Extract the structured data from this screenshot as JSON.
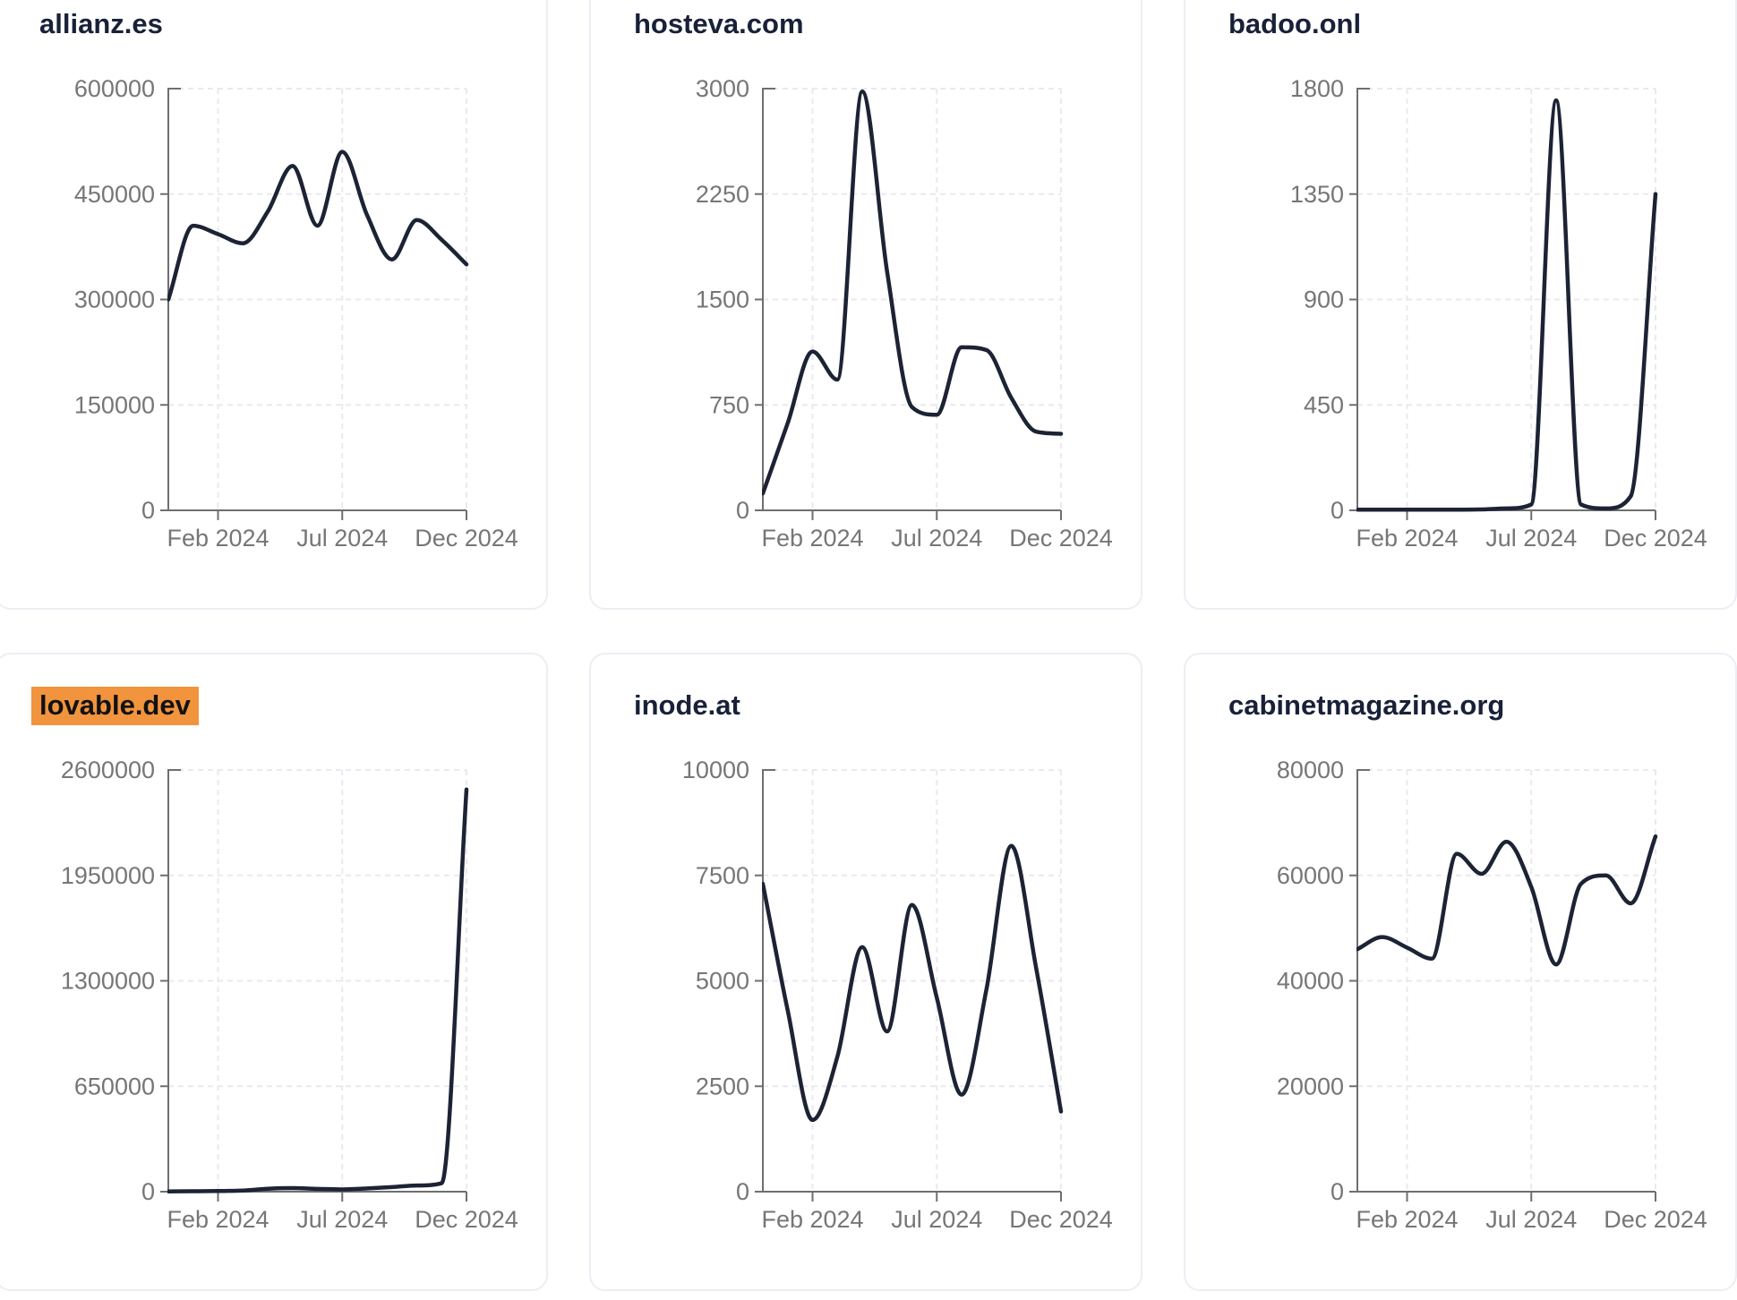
{
  "theme": {
    "background": "#ffffff",
    "line_color": "#1c2334",
    "axis_color": "#6f6f6f",
    "label_color": "#767676",
    "grid_color": "#e9e9ef",
    "title_color": "#182138",
    "highlight_color": "#f2943d",
    "card_border_color": "#eceef4"
  },
  "chart_data": [
    {
      "type": "line",
      "title": "allianz.es",
      "highlighted": false,
      "x": [
        "Dec 2023",
        "Jan 2024",
        "Feb 2024",
        "Mar 2024",
        "Apr 2024",
        "May 2024",
        "Jun 2024",
        "Jul 2024",
        "Aug 2024",
        "Sep 2024",
        "Oct 2024",
        "Nov 2024",
        "Dec 2024"
      ],
      "values": [
        300000,
        405000,
        393000,
        380000,
        425000,
        490000,
        405000,
        510000,
        420000,
        357000,
        413000,
        385000,
        350000
      ],
      "y_ticks": [
        0,
        150000,
        300000,
        450000,
        600000
      ],
      "ylim": [
        0,
        600000
      ],
      "x_tick_labels": [
        "Feb 2024",
        "Jul 2024",
        "Dec 2024"
      ],
      "x_tick_months": [
        2,
        7,
        12
      ],
      "grid": true,
      "legend": false
    },
    {
      "type": "line",
      "title": "hosteva.com",
      "highlighted": false,
      "x": [
        "Dec 2023",
        "Jan 2024",
        "Feb 2024",
        "Mar 2024",
        "Apr 2024",
        "May 2024",
        "Jun 2024",
        "Jul 2024",
        "Aug 2024",
        "Sep 2024",
        "Oct 2024",
        "Nov 2024",
        "Dec 2024"
      ],
      "values": [
        120,
        620,
        1130,
        930,
        2980,
        1700,
        735,
        680,
        1160,
        1140,
        800,
        560,
        545
      ],
      "y_ticks": [
        0,
        750,
        1500,
        2250,
        3000
      ],
      "ylim": [
        0,
        3000
      ],
      "x_tick_labels": [
        "Feb 2024",
        "Jul 2024",
        "Dec 2024"
      ],
      "x_tick_months": [
        2,
        7,
        12
      ],
      "grid": true,
      "legend": false
    },
    {
      "type": "line",
      "title": "badoo.onl",
      "highlighted": false,
      "x": [
        "Dec 2023",
        "Jan 2024",
        "Feb 2024",
        "Mar 2024",
        "Apr 2024",
        "May 2024",
        "Jun 2024",
        "Jul 2024",
        "Aug 2024",
        "Sep 2024",
        "Oct 2024",
        "Nov 2024",
        "Dec 2024"
      ],
      "values": [
        3,
        3,
        3,
        3,
        3,
        4,
        8,
        25,
        1750,
        25,
        8,
        60,
        1350
      ],
      "y_ticks": [
        0,
        450,
        900,
        1350,
        1800
      ],
      "ylim": [
        0,
        1800
      ],
      "x_tick_labels": [
        "Feb 2024",
        "Jul 2024",
        "Dec 2024"
      ],
      "x_tick_months": [
        2,
        7,
        12
      ],
      "grid": true,
      "legend": false
    },
    {
      "type": "line",
      "title": "lovable.dev",
      "highlighted": true,
      "x": [
        "Dec 2023",
        "Jan 2024",
        "Feb 2024",
        "Mar 2024",
        "Apr 2024",
        "May 2024",
        "Jun 2024",
        "Jul 2024",
        "Aug 2024",
        "Sep 2024",
        "Oct 2024",
        "Nov 2024",
        "Dec 2024"
      ],
      "values": [
        1500,
        2500,
        4000,
        7000,
        18000,
        22000,
        17000,
        14000,
        20000,
        28000,
        38000,
        52000,
        2480000
      ],
      "y_ticks": [
        0,
        650000,
        1300000,
        1950000,
        2600000
      ],
      "ylim": [
        0,
        2600000
      ],
      "x_tick_labels": [
        "Feb 2024",
        "Jul 2024",
        "Dec 2024"
      ],
      "x_tick_months": [
        2,
        7,
        12
      ],
      "grid": true,
      "legend": false
    },
    {
      "type": "line",
      "title": "inode.at",
      "highlighted": false,
      "x": [
        "Dec 2023",
        "Jan 2024",
        "Feb 2024",
        "Mar 2024",
        "Apr 2024",
        "May 2024",
        "Jun 2024",
        "Jul 2024",
        "Aug 2024",
        "Sep 2024",
        "Oct 2024",
        "Nov 2024",
        "Dec 2024"
      ],
      "values": [
        7300,
        4300,
        1700,
        3200,
        5800,
        3800,
        6800,
        4600,
        2300,
        4800,
        8200,
        5300,
        1900
      ],
      "y_ticks": [
        0,
        2500,
        5000,
        7500,
        10000
      ],
      "ylim": [
        0,
        10000
      ],
      "x_tick_labels": [
        "Feb 2024",
        "Jul 2024",
        "Dec 2024"
      ],
      "x_tick_months": [
        2,
        7,
        12
      ],
      "grid": true,
      "legend": false
    },
    {
      "type": "line",
      "title": "cabinetmagazine.org",
      "highlighted": false,
      "x": [
        "Dec 2023",
        "Jan 2024",
        "Feb 2024",
        "Mar 2024",
        "Apr 2024",
        "May 2024",
        "Jun 2024",
        "Jul 2024",
        "Aug 2024",
        "Sep 2024",
        "Oct 2024",
        "Nov 2024",
        "Dec 2024"
      ],
      "values": [
        46000,
        48300,
        46300,
        44200,
        64100,
        60300,
        66400,
        57800,
        43100,
        58400,
        60000,
        54700,
        67400
      ],
      "y_ticks": [
        0,
        20000,
        40000,
        60000,
        80000
      ],
      "ylim": [
        0,
        80000
      ],
      "x_tick_labels": [
        "Feb 2024",
        "Jul 2024",
        "Dec 2024"
      ],
      "x_tick_months": [
        2,
        7,
        12
      ],
      "grid": true,
      "legend": false
    }
  ]
}
